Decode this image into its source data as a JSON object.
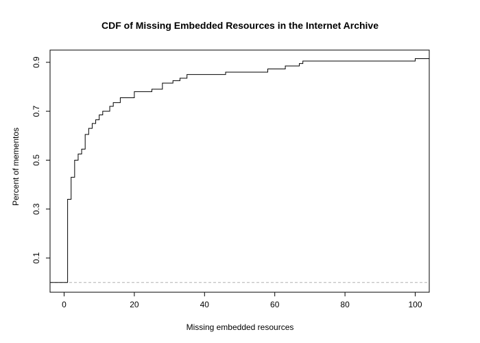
{
  "chart_data": {
    "type": "line",
    "title": "CDF of Missing Embedded Resources in the Internet Archive",
    "xlabel": "Missing embedded resources",
    "ylabel": "Percent of mementos",
    "xlim": [
      -4,
      104
    ],
    "ylim": [
      -0.04,
      0.95
    ],
    "x_ticks": [
      0,
      20,
      40,
      60,
      80,
      100
    ],
    "y_ticks": [
      0.1,
      0.3,
      0.5,
      0.7,
      0.9
    ],
    "x_tick_labels": [
      "0",
      "20",
      "40",
      "60",
      "80",
      "100"
    ],
    "y_tick_labels": [
      "0.1",
      "0.3",
      "0.5",
      "0.7",
      "0.9"
    ],
    "grid": false,
    "reference_line": {
      "y": 0,
      "style": "dashed",
      "color": "#b0b0b0"
    },
    "series": [
      {
        "style": "step",
        "color": "#000000",
        "points": [
          [
            -4,
            0.0
          ],
          [
            1,
            0.0
          ],
          [
            1,
            0.34
          ],
          [
            2,
            0.34
          ],
          [
            2,
            0.43
          ],
          [
            3,
            0.43
          ],
          [
            3,
            0.5
          ],
          [
            4,
            0.5
          ],
          [
            4,
            0.525
          ],
          [
            5,
            0.525
          ],
          [
            5,
            0.545
          ],
          [
            6,
            0.545
          ],
          [
            6,
            0.605
          ],
          [
            7,
            0.605
          ],
          [
            7,
            0.63
          ],
          [
            8,
            0.63
          ],
          [
            8,
            0.65
          ],
          [
            9,
            0.65
          ],
          [
            9,
            0.665
          ],
          [
            10,
            0.665
          ],
          [
            10,
            0.685
          ],
          [
            11,
            0.685
          ],
          [
            11,
            0.7
          ],
          [
            13,
            0.7
          ],
          [
            13,
            0.72
          ],
          [
            14,
            0.72
          ],
          [
            14,
            0.735
          ],
          [
            16,
            0.735
          ],
          [
            16,
            0.755
          ],
          [
            20,
            0.755
          ],
          [
            20,
            0.78
          ],
          [
            25,
            0.78
          ],
          [
            25,
            0.79
          ],
          [
            28,
            0.79
          ],
          [
            28,
            0.815
          ],
          [
            31,
            0.815
          ],
          [
            31,
            0.825
          ],
          [
            33,
            0.825
          ],
          [
            33,
            0.835
          ],
          [
            35,
            0.835
          ],
          [
            35,
            0.85
          ],
          [
            46,
            0.85
          ],
          [
            46,
            0.86
          ],
          [
            58,
            0.86
          ],
          [
            58,
            0.873
          ],
          [
            63,
            0.873
          ],
          [
            63,
            0.885
          ],
          [
            67,
            0.885
          ],
          [
            67,
            0.895
          ],
          [
            68,
            0.895
          ],
          [
            68,
            0.905
          ],
          [
            100,
            0.905
          ],
          [
            100,
            0.915
          ],
          [
            104,
            0.915
          ]
        ]
      }
    ]
  }
}
